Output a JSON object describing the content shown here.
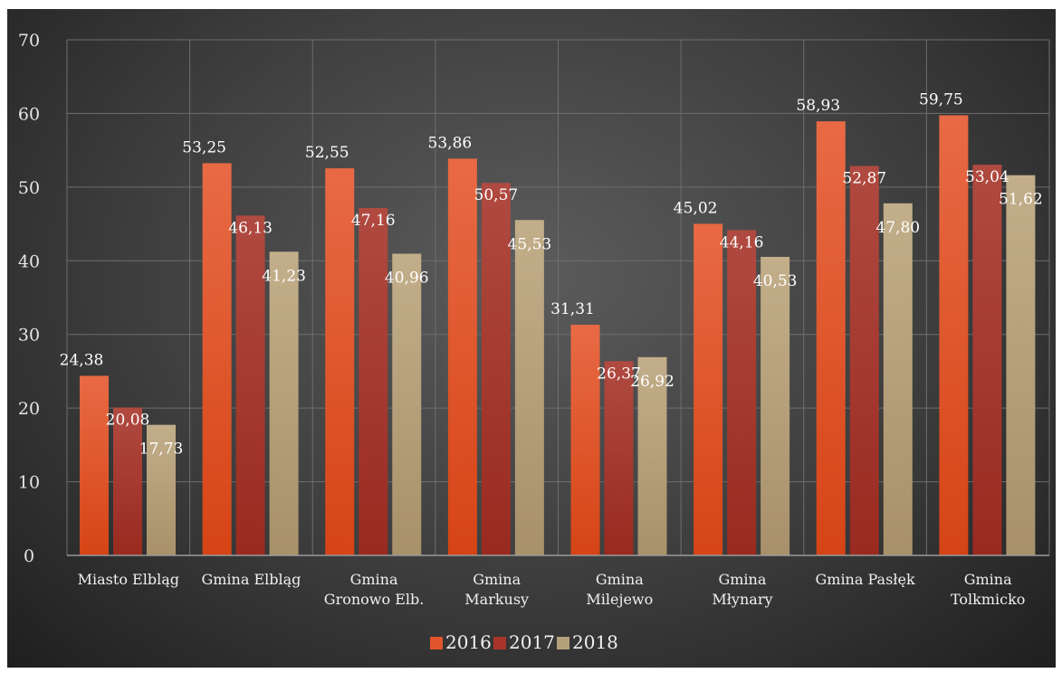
{
  "chart_data": {
    "type": "bar",
    "title": "",
    "xlabel": "",
    "ylabel": "",
    "ylim": [
      0,
      70
    ],
    "yticks": [
      0,
      10,
      20,
      30,
      40,
      50,
      60,
      70
    ],
    "grid": true,
    "legend_position": "bottom",
    "categories": [
      [
        "Miasto Elbląg"
      ],
      [
        "Gmina Elbląg"
      ],
      [
        "Gmina",
        "Gronowo Elb."
      ],
      [
        "Gmina",
        "Markusy"
      ],
      [
        "Gmina",
        "Milejewo"
      ],
      [
        "Gmina",
        "Młynary"
      ],
      [
        "Gmina Pasłęk"
      ],
      [
        "Gmina",
        "Tolkmicko"
      ]
    ],
    "series": [
      {
        "name": "2016",
        "color": "#e0552c",
        "values": [
          24.38,
          53.25,
          52.55,
          53.86,
          31.31,
          45.02,
          58.93,
          59.75
        ],
        "labels": [
          "24,38",
          "53,25",
          "52,55",
          "53,86",
          "31,31",
          "45,02",
          "58,93",
          "59,75"
        ]
      },
      {
        "name": "2017",
        "color": "#a8342a",
        "values": [
          20.08,
          46.13,
          47.16,
          50.57,
          26.37,
          44.16,
          52.87,
          53.04
        ],
        "labels": [
          "20,08",
          "46,13",
          "47,16",
          "50,57",
          "26,37",
          "44,16",
          "52,87",
          "53,04"
        ]
      },
      {
        "name": "2018",
        "color": "#b5a07c",
        "values": [
          17.73,
          41.23,
          40.96,
          45.53,
          26.92,
          40.53,
          47.8,
          51.62
        ],
        "labels": [
          "17,73",
          "41,23",
          "40,96",
          "45,53",
          "26,92",
          "40,53",
          "47,80",
          "51,62"
        ]
      }
    ]
  }
}
